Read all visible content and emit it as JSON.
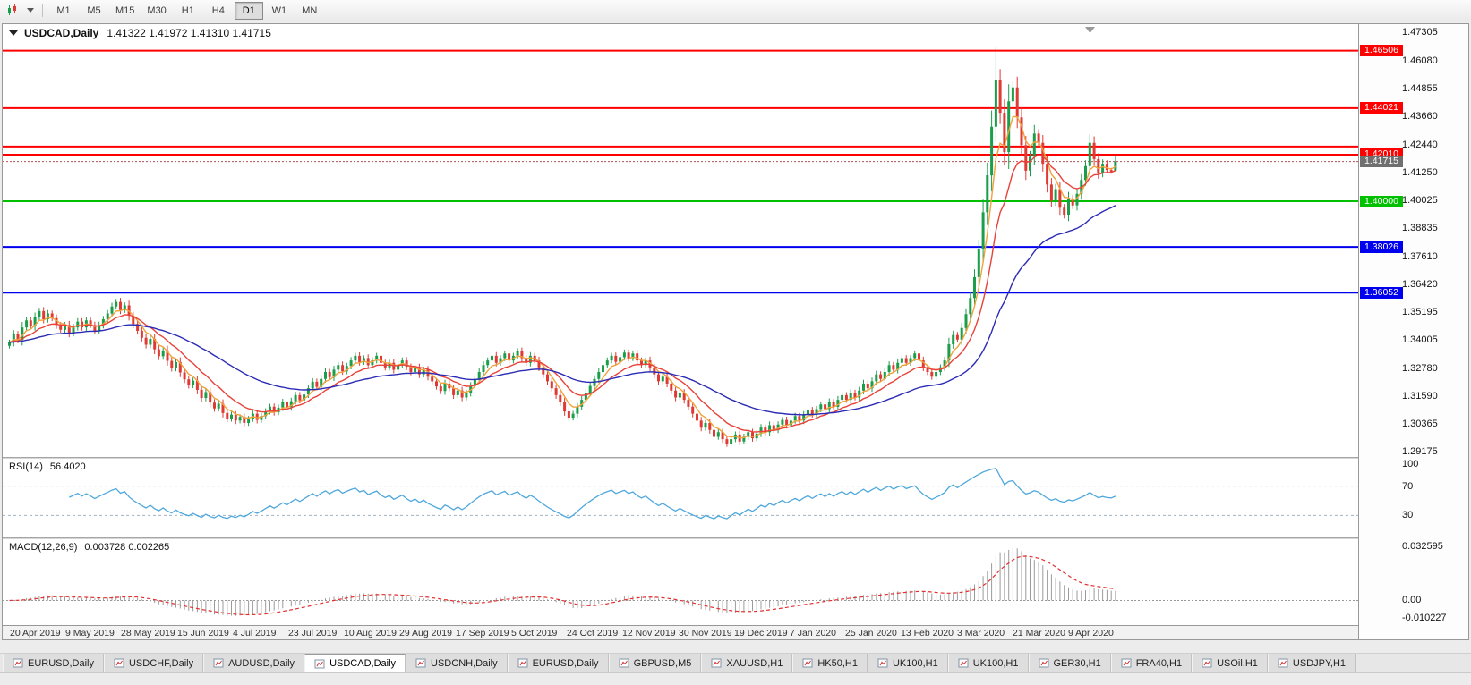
{
  "toolbar": {
    "timeframes": [
      "M1",
      "M5",
      "M15",
      "M30",
      "H1",
      "H4",
      "D1",
      "W1",
      "MN"
    ],
    "active_timeframe": "D1"
  },
  "chart": {
    "symbol": "USDCAD,Daily",
    "ohlc": "1.41322 1.41972 1.41310 1.41715"
  },
  "price_axis": {
    "ticks": [
      "1.47305",
      "1.46080",
      "1.44855",
      "1.43660",
      "1.42440",
      "1.41250",
      "1.40025",
      "1.38835",
      "1.37610",
      "1.36420",
      "1.35195",
      "1.34005",
      "1.32780",
      "1.31590",
      "1.30365",
      "1.29175"
    ],
    "current": {
      "label": "1.41715",
      "price": 1.41715
    }
  },
  "colors": {
    "bull": "#1b9e4b",
    "bear": "#e03a34",
    "current_badge_bg": "#6f6f6f",
    "current_line": "#b05050",
    "level_dash": "#9fb3c4",
    "zero_line": "#999999"
  },
  "chart_data": {
    "type": "candlestick",
    "symbol": "USDCAD",
    "timeframe": "Daily",
    "current_ohlc": {
      "open": 1.41322,
      "high": 1.41972,
      "low": 1.4131,
      "close": 1.41715
    },
    "ylim": [
      1.2895,
      1.4765
    ],
    "closes": [
      1.339,
      1.3425,
      1.34,
      1.3455,
      1.3485,
      1.346,
      1.35,
      1.3525,
      1.349,
      1.3515,
      1.3495,
      1.3465,
      1.3445,
      1.3465,
      1.343,
      1.3455,
      1.348,
      1.3455,
      1.3485,
      1.3465,
      1.344,
      1.3465,
      1.349,
      1.3515,
      1.3545,
      1.3565,
      1.353,
      1.355,
      1.3505,
      1.347,
      1.344,
      1.341,
      1.338,
      1.3405,
      1.336,
      1.333,
      1.3355,
      1.331,
      1.328,
      1.3305,
      1.326,
      1.323,
      1.3205,
      1.3225,
      1.3185,
      1.315,
      1.3175,
      1.313,
      1.3105,
      1.3125,
      1.3085,
      1.306,
      1.3078,
      1.3052,
      1.3068,
      1.3042,
      1.306,
      1.3082,
      1.3055,
      1.3072,
      1.3092,
      1.3112,
      1.3088,
      1.3108,
      1.3132,
      1.311,
      1.3136,
      1.3162,
      1.314,
      1.3165,
      1.3192,
      1.322,
      1.3198,
      1.3232,
      1.3262,
      1.324,
      1.3272,
      1.3292,
      1.3265,
      1.3288,
      1.3312,
      1.3332,
      1.3305,
      1.3322,
      1.3292,
      1.3312,
      1.3332,
      1.3302,
      1.3282,
      1.3302,
      1.3272,
      1.3292,
      1.3312,
      1.3285,
      1.3262,
      1.3282,
      1.3252,
      1.3272,
      1.3242,
      1.3222,
      1.32,
      1.318,
      1.3212,
      1.3192,
      1.3162,
      1.3182,
      1.3152,
      1.3172,
      1.3202,
      1.3232,
      1.3262,
      1.3292,
      1.3312,
      1.3332,
      1.3302,
      1.3322,
      1.3342,
      1.3312,
      1.3332,
      1.3352,
      1.3322,
      1.3302,
      1.3332,
      1.3312,
      1.3282,
      1.3252,
      1.3222,
      1.3192,
      1.3162,
      1.3132,
      1.3092,
      1.3065,
      1.3082,
      1.3112,
      1.3142,
      1.3172,
      1.3202,
      1.3232,
      1.3262,
      1.3292,
      1.3312,
      1.3332,
      1.3306,
      1.3326,
      1.3346,
      1.3322,
      1.3342,
      1.3312,
      1.3292,
      1.3312,
      1.3282,
      1.3252,
      1.3222,
      1.3242,
      1.3212,
      1.3182,
      1.3152,
      1.3172,
      1.3142,
      1.3112,
      1.3082,
      1.3052,
      1.3022,
      1.3042,
      1.3012,
      1.2982,
      1.3002,
      1.2972,
      1.2952,
      1.2972,
      1.2992,
      1.2962,
      1.2982,
      1.3002,
      1.2976,
      1.2996,
      1.3022,
      1.3002,
      1.3032,
      1.3012,
      1.3035,
      1.3055,
      1.3032,
      1.3052,
      1.3072,
      1.3052,
      1.3078,
      1.3098,
      1.3078,
      1.3102,
      1.3122,
      1.3102,
      1.3132,
      1.3112,
      1.3142,
      1.3162,
      1.3142,
      1.3172,
      1.3152,
      1.3182,
      1.3212,
      1.3192,
      1.3222,
      1.3252,
      1.3232,
      1.3262,
      1.3292,
      1.3272,
      1.3302,
      1.3322,
      1.3302,
      1.3322,
      1.3342,
      1.3312,
      1.3282,
      1.3262,
      1.3242,
      1.3262,
      1.3282,
      1.3312,
      1.3382,
      1.3422,
      1.3402,
      1.3452,
      1.3512,
      1.3582,
      1.3672,
      1.3792,
      1.3952,
      1.4112,
      1.4322,
      1.4522,
      1.4382,
      1.4212,
      1.4432,
      1.4492,
      1.4362,
      1.4242,
      1.4132,
      1.4192,
      1.4292,
      1.4252,
      1.4162,
      1.4072,
      1.4002,
      1.4052,
      1.3972,
      1.3942,
      1.4012,
      1.3982,
      1.4032,
      1.4092,
      1.4152,
      1.4252,
      1.4182,
      1.4122,
      1.4162,
      1.4135,
      1.4128,
      1.41715
    ],
    "overrides": {
      "231": {
        "h": 1.4668
      },
      "259": {
        "o": 1.41322,
        "h": 1.41972,
        "l": 1.4131,
        "c": 1.41715
      }
    },
    "moving_averages": [
      {
        "name": "ma-fast",
        "period": 5,
        "color": "#f0a23c"
      },
      {
        "name": "ma-mid",
        "period": 12,
        "color": "#e8423a"
      },
      {
        "name": "ma-slow",
        "period": 40,
        "color": "#2b2bb5"
      }
    ],
    "hlines": [
      {
        "price": 1.46506,
        "label": "1.46506",
        "color": "#fe0000"
      },
      {
        "price": 1.44021,
        "label": "1.44021",
        "color": "#fe0000"
      },
      {
        "price": 1.4236,
        "label": null,
        "color": "#fe0000"
      },
      {
        "price": 1.4201,
        "label": "1.42010",
        "color": "#fe0000"
      },
      {
        "price": 1.4,
        "label": "1.40000",
        "color": "#00c000"
      },
      {
        "price": 1.38026,
        "label": "1.38026",
        "color": "#0000ee"
      },
      {
        "price": 1.36052,
        "label": "1.36052",
        "color": "#0000ee"
      }
    ],
    "x_labels": [
      "20 Apr 2019",
      "9 May 2019",
      "28 May 2019",
      "15 Jun 2019",
      "4 Jul 2019",
      "23 Jul 2019",
      "10 Aug 2019",
      "29 Aug 2019",
      "17 Sep 2019",
      "5 Oct 2019",
      "24 Oct 2019",
      "12 Nov 2019",
      "30 Nov 2019",
      "19 Dec 2019",
      "7 Jan 2020",
      "25 Jan 2020",
      "13 Feb 2020",
      "3 Mar 2020",
      "21 Mar 2020",
      "9 Apr 2020"
    ],
    "rsi": {
      "label": "RSI(14)",
      "value": "56.4020",
      "period": 14,
      "levels": [
        70,
        30
      ],
      "axis_labels": [
        "100",
        "70",
        "30"
      ],
      "color": "#4fa8dd"
    },
    "macd": {
      "label": "MACD(12,26,9)",
      "value": "0.003728 0.002265",
      "fast": 12,
      "slow": 26,
      "signal": 9,
      "axis_top": "0.032595",
      "axis_zero": "0.00",
      "axis_bottom": "-0.010227",
      "hist_color": "#9b9b9b",
      "signal_color": "#e23030"
    }
  },
  "tabs": {
    "active_index": 3,
    "items": [
      "EURUSD,Daily",
      "USDCHF,Daily",
      "AUDUSD,Daily",
      "USDCAD,Daily",
      "USDCNH,Daily",
      "EURUSD,Daily",
      "GBPUSD,M5",
      "XAUUSD,H1",
      "HK50,H1",
      "UK100,H1",
      "UK100,H1",
      "GER30,H1",
      "FRA40,H1",
      "USOil,H1",
      "USDJPY,H1"
    ]
  }
}
